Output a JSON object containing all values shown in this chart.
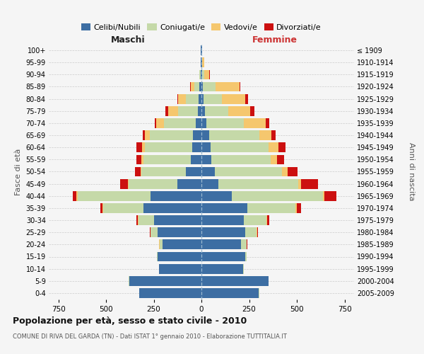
{
  "age_groups": [
    "100+",
    "95-99",
    "90-94",
    "85-89",
    "80-84",
    "75-79",
    "70-74",
    "65-69",
    "60-64",
    "55-59",
    "50-54",
    "45-49",
    "40-44",
    "35-39",
    "30-34",
    "25-29",
    "20-24",
    "15-19",
    "10-14",
    "5-9",
    "0-4"
  ],
  "birth_years": [
    "≤ 1909",
    "1910-1914",
    "1915-1919",
    "1920-1924",
    "1925-1929",
    "1930-1934",
    "1935-1939",
    "1940-1944",
    "1945-1949",
    "1950-1954",
    "1955-1959",
    "1960-1964",
    "1965-1969",
    "1970-1974",
    "1975-1979",
    "1980-1984",
    "1985-1989",
    "1990-1994",
    "1995-1999",
    "2000-2004",
    "2005-2009"
  ],
  "males_celibe": [
    2,
    3,
    5,
    10,
    15,
    18,
    30,
    45,
    50,
    55,
    80,
    125,
    265,
    305,
    248,
    228,
    205,
    228,
    222,
    378,
    325
  ],
  "males_coniugato": [
    0,
    2,
    5,
    28,
    68,
    105,
    168,
    225,
    248,
    250,
    235,
    255,
    385,
    210,
    82,
    38,
    14,
    5,
    2,
    2,
    2
  ],
  "males_vedovo": [
    0,
    0,
    2,
    18,
    38,
    52,
    38,
    28,
    14,
    9,
    5,
    5,
    5,
    2,
    2,
    2,
    2,
    0,
    0,
    0,
    0
  ],
  "males_divorziato": [
    0,
    0,
    0,
    2,
    5,
    14,
    10,
    10,
    28,
    28,
    28,
    42,
    18,
    14,
    9,
    4,
    2,
    0,
    0,
    0,
    0
  ],
  "females_nubile": [
    2,
    3,
    4,
    9,
    11,
    17,
    26,
    42,
    48,
    52,
    72,
    90,
    158,
    242,
    222,
    228,
    208,
    228,
    218,
    350,
    300
  ],
  "females_coniugata": [
    0,
    2,
    9,
    65,
    95,
    125,
    195,
    262,
    302,
    312,
    352,
    418,
    478,
    252,
    120,
    62,
    28,
    10,
    3,
    3,
    3
  ],
  "females_vedova": [
    2,
    9,
    28,
    125,
    125,
    115,
    115,
    62,
    52,
    32,
    28,
    14,
    9,
    5,
    3,
    2,
    2,
    0,
    0,
    0,
    0
  ],
  "females_divorziata": [
    0,
    0,
    2,
    5,
    14,
    19,
    19,
    24,
    38,
    38,
    52,
    90,
    62,
    24,
    9,
    4,
    2,
    0,
    0,
    0,
    0
  ],
  "colors": {
    "celibe": "#3D6EA3",
    "coniugato": "#C5D9A8",
    "vedovo": "#F5C76E",
    "divorziato": "#CC1010"
  },
  "legend_labels": [
    "Celibi/Nubili",
    "Coniugati/e",
    "Vedovi/e",
    "Divorziati/e"
  ],
  "xlim": 800,
  "title": "Popolazione per età, sesso e stato civile - 2010",
  "subtitle": "COMUNE DI RIVA DEL GARDA (TN) - Dati ISTAT 1° gennaio 2010 - Elaborazione TUTTITALIA.IT",
  "label_maschi": "Maschi",
  "label_femmine": "Femmine",
  "ylabel_left": "Fasce di età",
  "ylabel_right": "Anni di nascita",
  "bg_color": "#f5f5f5"
}
